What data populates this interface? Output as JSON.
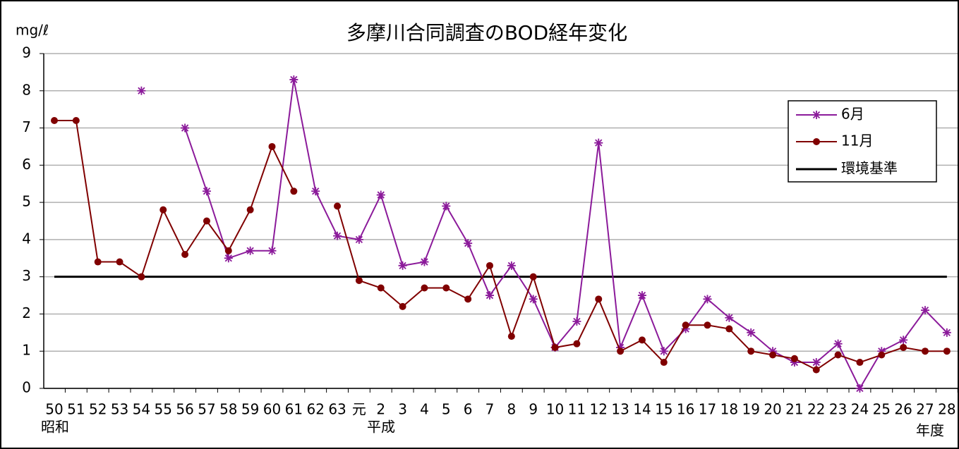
{
  "chart_data": {
    "type": "line",
    "title": "多摩川合同調査のBOD経年変化",
    "ylabel": "mg/ℓ",
    "xlabel": "年度",
    "x_group_labels": [
      "昭和",
      "平成"
    ],
    "categories": [
      "50",
      "51",
      "52",
      "53",
      "54",
      "55",
      "56",
      "57",
      "58",
      "59",
      "60",
      "61",
      "62",
      "63",
      "元",
      "2",
      "3",
      "4",
      "5",
      "6",
      "7",
      "8",
      "9",
      "10",
      "11",
      "12",
      "13",
      "14",
      "15",
      "16",
      "17",
      "18",
      "19",
      "20",
      "21",
      "22",
      "23",
      "24",
      "25",
      "26",
      "27",
      "28"
    ],
    "series": [
      {
        "name": "6月",
        "color": "#8b1a9a",
        "marker": "star",
        "values": [
          null,
          null,
          null,
          null,
          8.0,
          null,
          7.0,
          5.3,
          3.5,
          3.7,
          3.7,
          8.3,
          5.3,
          4.1,
          4.0,
          5.2,
          3.3,
          3.4,
          4.9,
          3.9,
          2.5,
          3.3,
          2.4,
          1.1,
          1.8,
          6.6,
          1.1,
          2.5,
          1.0,
          1.6,
          2.4,
          1.9,
          1.5,
          1.0,
          0.7,
          0.7,
          1.2,
          0.0,
          1.0,
          1.3,
          2.1,
          1.5
        ]
      },
      {
        "name": "11月",
        "color": "#800000",
        "marker": "circle",
        "values": [
          7.2,
          7.2,
          3.4,
          3.4,
          3.0,
          4.8,
          3.6,
          4.5,
          3.7,
          4.8,
          6.5,
          5.3,
          null,
          4.9,
          2.9,
          2.7,
          2.2,
          2.7,
          2.7,
          2.4,
          3.3,
          1.4,
          3.0,
          1.1,
          1.2,
          2.4,
          1.0,
          1.3,
          0.7,
          1.7,
          1.7,
          1.6,
          1.0,
          0.9,
          0.8,
          0.5,
          0.9,
          0.7,
          0.9,
          1.1,
          1.0,
          1.0
        ]
      }
    ],
    "reference_line": {
      "name": "環境基準",
      "value": 3,
      "color": "#000000"
    },
    "ylim": [
      0,
      9
    ],
    "yticks": [
      0,
      1,
      2,
      3,
      4,
      5,
      6,
      7,
      8,
      9
    ],
    "grid": true,
    "legend": "upper right"
  }
}
